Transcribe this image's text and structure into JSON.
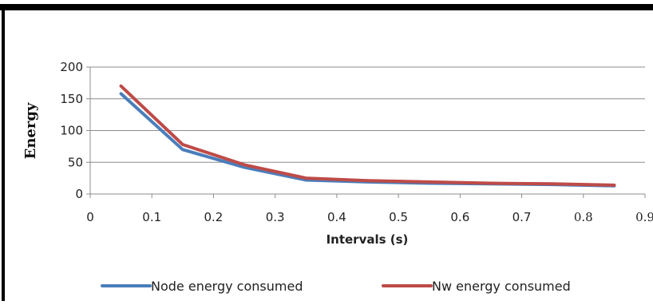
{
  "chart_data": {
    "type": "line",
    "title": "",
    "xlabel": "Intervals (s)",
    "ylabel": "Energy",
    "xlim": [
      0,
      0.9
    ],
    "ylim": [
      0,
      200
    ],
    "x_ticks": [
      "0",
      "0.1",
      "0.2",
      "0.3",
      "0.4",
      "0.5",
      "0.6",
      "0.7",
      "0.8",
      "0.9"
    ],
    "y_ticks": [
      "0",
      "50",
      "100",
      "150",
      "200"
    ],
    "grid": "horizontal",
    "legend_position": "bottom",
    "series": [
      {
        "name": "Node energy consumed",
        "color": "#4a7ebb",
        "x": [
          0.05,
          0.15,
          0.25,
          0.35,
          0.45,
          0.55,
          0.65,
          0.75,
          0.85
        ],
        "y": [
          158,
          70,
          42,
          22,
          19,
          17,
          16,
          15,
          13
        ]
      },
      {
        "name": "Nw energy consumed",
        "color": "#be4b48",
        "x": [
          0.05,
          0.15,
          0.25,
          0.35,
          0.45,
          0.55,
          0.65,
          0.75,
          0.85
        ],
        "y": [
          170,
          78,
          46,
          25,
          21,
          19,
          17,
          16,
          14
        ]
      }
    ]
  }
}
